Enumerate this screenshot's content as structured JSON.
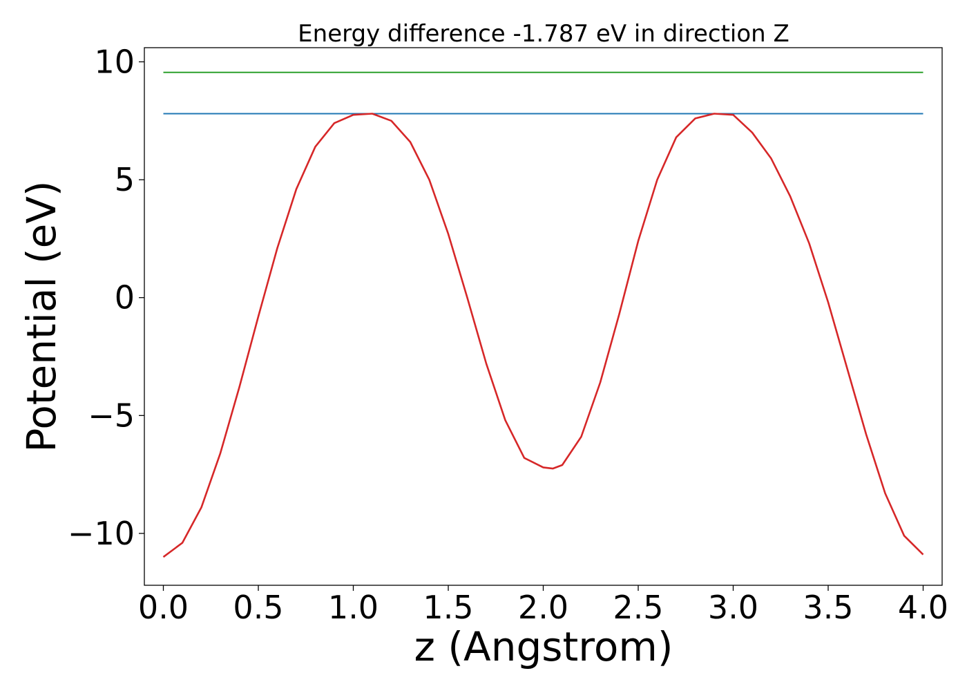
{
  "chart_data": {
    "type": "line",
    "title": "Energy difference -1.787 eV in direction Z",
    "xlabel": "z (Angstrom)",
    "ylabel": "Potential (eV)",
    "xlim": [
      -0.1,
      4.1
    ],
    "ylim": [
      -12.2,
      10.6
    ],
    "xticks": [
      0.0,
      0.5,
      1.0,
      1.5,
      2.0,
      2.5,
      3.0,
      3.5,
      4.0
    ],
    "xtick_labels": [
      "0.0",
      "0.5",
      "1.0",
      "1.5",
      "2.0",
      "2.5",
      "3.0",
      "3.5",
      "4.0"
    ],
    "yticks": [
      10,
      5,
      0,
      -5,
      -10
    ],
    "ytick_labels": [
      "10",
      "5",
      "0",
      "−5",
      "−10"
    ],
    "grid": false,
    "legend": "none",
    "series": [
      {
        "color": "#2ca02c",
        "x": [
          0.0,
          4.0
        ],
        "y": [
          9.55,
          9.55
        ]
      },
      {
        "color": "#1f77b4",
        "x": [
          0.0,
          4.0
        ],
        "y": [
          7.8,
          7.8
        ]
      },
      {
        "color": "#d62728",
        "x": [
          0.0,
          0.1,
          0.2,
          0.3,
          0.4,
          0.5,
          0.6,
          0.7,
          0.8,
          0.9,
          1.0,
          1.1,
          1.2,
          1.3,
          1.4,
          1.5,
          1.6,
          1.7,
          1.8,
          1.9,
          2.0,
          2.05,
          2.1,
          2.2,
          2.3,
          2.4,
          2.5,
          2.6,
          2.7,
          2.8,
          2.9,
          3.0,
          3.1,
          3.2,
          3.3,
          3.4,
          3.5,
          3.6,
          3.7,
          3.8,
          3.9,
          4.0
        ],
        "y": [
          -11.0,
          -10.4,
          -8.9,
          -6.6,
          -3.8,
          -0.8,
          2.1,
          4.6,
          6.4,
          7.4,
          7.75,
          7.8,
          7.5,
          6.6,
          5.0,
          2.7,
          0.0,
          -2.8,
          -5.2,
          -6.8,
          -7.2,
          -7.25,
          -7.1,
          -5.9,
          -3.6,
          -0.7,
          2.4,
          5.0,
          6.8,
          7.6,
          7.8,
          7.75,
          7.0,
          5.9,
          4.3,
          2.3,
          -0.2,
          -3.0,
          -5.8,
          -8.3,
          -10.1,
          -10.9
        ]
      }
    ]
  }
}
